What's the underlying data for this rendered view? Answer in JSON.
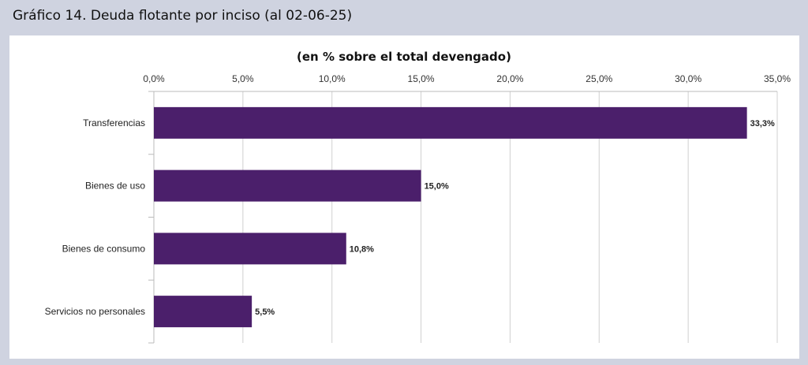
{
  "header": {
    "title": "Gráfico 14. Deuda flotante por inciso (al 02-06-25)"
  },
  "chart_data": {
    "type": "bar",
    "orientation": "horizontal",
    "subtitle": "(en % sobre el total devengado)",
    "categories": [
      "Transferencias",
      "Bienes de uso",
      "Bienes de consumo",
      "Servicios no personales"
    ],
    "values": [
      33.3,
      15.0,
      10.8,
      5.5
    ],
    "data_labels": [
      "33,3%",
      "15,0%",
      "10,8%",
      "5,5%"
    ],
    "xlim": [
      0,
      35
    ],
    "xticks": [
      "0,0%",
      "5,0%",
      "10,0%",
      "15,0%",
      "20,0%",
      "25,0%",
      "30,0%",
      "35,0%"
    ],
    "grid": true,
    "bar_color": "#4b1f6b"
  }
}
